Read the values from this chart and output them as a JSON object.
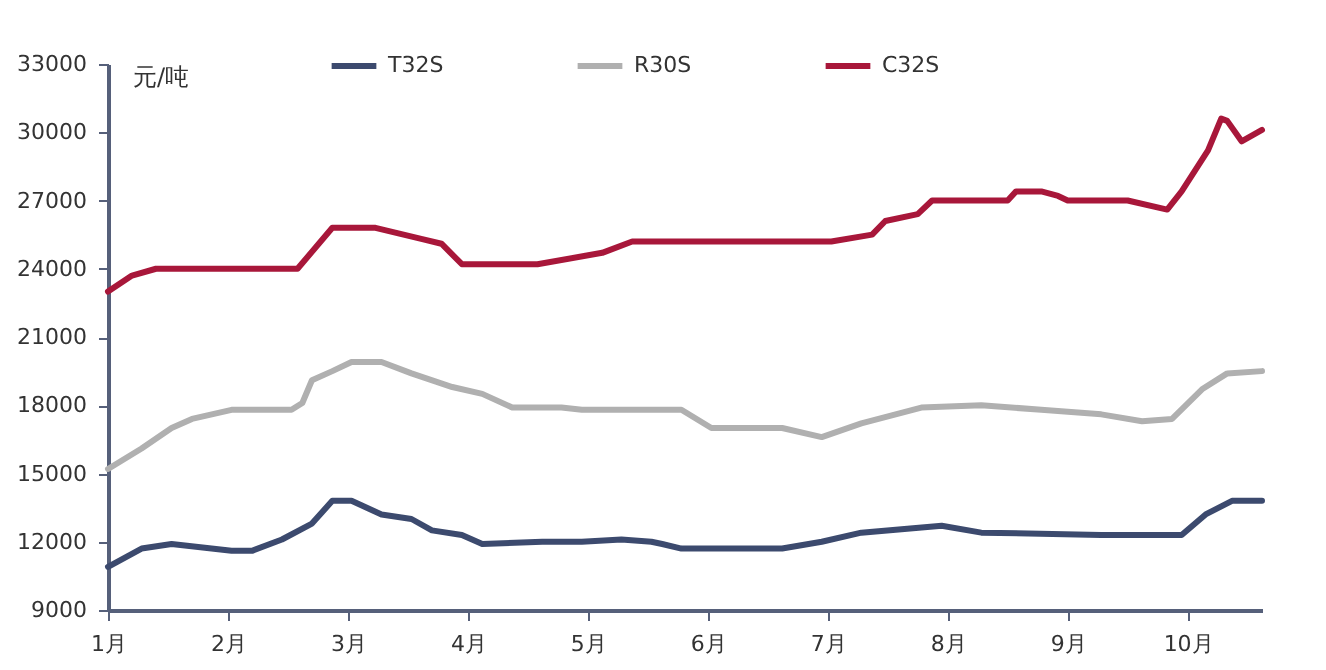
{
  "chart_data": {
    "type": "line",
    "ylabel": "元/吨",
    "legend": "top",
    "grid": false,
    "line_style": "solid",
    "xlim": [
      1,
      10.62
    ],
    "xticks": [
      {
        "value": 1,
        "label": "1月"
      },
      {
        "value": 2,
        "label": "2月"
      },
      {
        "value": 3,
        "label": "3月"
      },
      {
        "value": 4,
        "label": "4月"
      },
      {
        "value": 5,
        "label": "5月"
      },
      {
        "value": 6,
        "label": "6月"
      },
      {
        "value": 7,
        "label": "7月"
      },
      {
        "value": 8,
        "label": "8月"
      },
      {
        "value": 9,
        "label": "9月"
      },
      {
        "value": 10,
        "label": "10月"
      }
    ],
    "ylim": [
      9000,
      33000
    ],
    "yticks": [
      9000,
      12000,
      15000,
      18000,
      21000,
      24000,
      27000,
      30000,
      33000
    ],
    "series": [
      {
        "name": "T32S",
        "color": "#3c4a6e",
        "x": [
          1.0,
          1.28,
          1.53,
          2.03,
          2.2,
          2.45,
          2.7,
          2.87,
          3.03,
          3.28,
          3.53,
          3.7,
          3.95,
          4.12,
          4.62,
          4.95,
          5.28,
          5.53,
          5.62,
          5.78,
          6.62,
          6.95,
          7.28,
          7.95,
          8.28,
          9.28,
          9.95,
          10.15,
          10.37,
          10.62
        ],
        "values": [
          10900,
          11700,
          11900,
          11600,
          11600,
          12100,
          12800,
          13800,
          13800,
          13200,
          13000,
          12500,
          12300,
          11900,
          12000,
          12000,
          12100,
          12000,
          11900,
          11700,
          11700,
          12000,
          12400,
          12700,
          12400,
          12300,
          12300,
          13200,
          13800,
          13800
        ]
      },
      {
        "name": "R30S",
        "color": "#b0b0b0",
        "x": [
          1.0,
          1.28,
          1.53,
          1.7,
          2.03,
          2.53,
          2.62,
          2.7,
          2.87,
          3.03,
          3.28,
          3.53,
          3.87,
          4.12,
          4.37,
          4.78,
          4.95,
          5.62,
          5.78,
          6.03,
          6.62,
          6.95,
          7.28,
          7.78,
          8.28,
          8.78,
          9.28,
          9.62,
          9.87,
          10.12,
          10.33,
          10.62
        ],
        "values": [
          15200,
          16100,
          17000,
          17400,
          17800,
          17800,
          18100,
          19100,
          19500,
          19900,
          19900,
          19400,
          18800,
          18500,
          17900,
          17900,
          17800,
          17800,
          17800,
          17000,
          17000,
          16600,
          17200,
          17900,
          18000,
          17800,
          17600,
          17300,
          17400,
          18700,
          19400,
          19500
        ]
      },
      {
        "name": "C32S",
        "color": "#a8173a",
        "x": [
          1.0,
          1.2,
          1.4,
          2.58,
          2.87,
          3.23,
          3.62,
          3.78,
          3.95,
          4.58,
          5.12,
          5.37,
          7.03,
          7.37,
          7.48,
          7.75,
          7.87,
          8.5,
          8.57,
          8.78,
          8.92,
          9.0,
          9.5,
          9.83,
          9.95,
          10.17,
          10.28,
          10.33,
          10.45,
          10.62
        ],
        "values": [
          23000,
          23700,
          24000,
          24000,
          25800,
          25800,
          25300,
          25100,
          24200,
          24200,
          24700,
          25200,
          25200,
          25500,
          26100,
          26400,
          27000,
          27000,
          27400,
          27400,
          27200,
          27000,
          27000,
          26600,
          27400,
          29200,
          30600,
          30500,
          29600,
          30100
        ]
      }
    ]
  }
}
